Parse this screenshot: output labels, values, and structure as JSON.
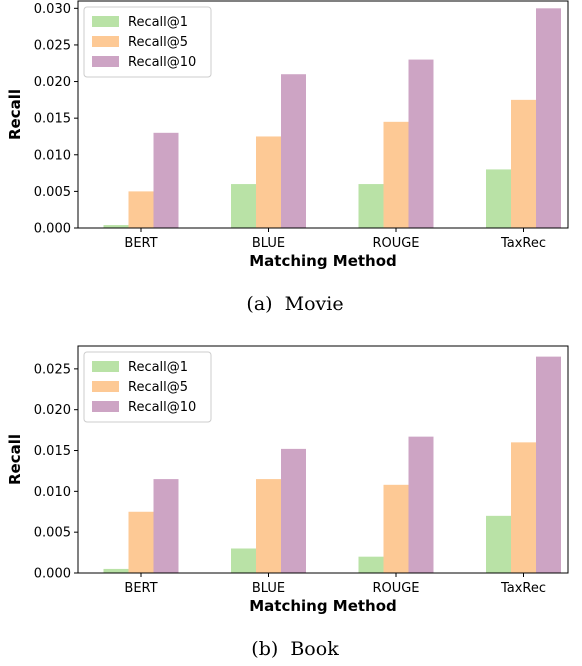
{
  "colors": {
    "Recall@1": "#b9e2a6",
    "Recall@5": "#fdc995",
    "Recall@10": "#cda4c4"
  },
  "chart_data": [
    {
      "type": "bar",
      "caption": "(a)  Movie",
      "xlabel": "Matching Method",
      "ylabel": "Recall",
      "categories": [
        "BERT",
        "BLUE",
        "ROUGE",
        "TaxRec"
      ],
      "ylim": [
        0,
        0.031
      ],
      "yticks": [
        "0.000",
        "0.005",
        "0.010",
        "0.015",
        "0.020",
        "0.025",
        "0.030"
      ],
      "legend_position": "top-left",
      "grid": false,
      "series": [
        {
          "name": "Recall@1",
          "values": [
            0.0004,
            0.006,
            0.006,
            0.008
          ]
        },
        {
          "name": "Recall@5",
          "values": [
            0.005,
            0.0125,
            0.0145,
            0.0175
          ]
        },
        {
          "name": "Recall@10",
          "values": [
            0.013,
            0.021,
            0.023,
            0.03
          ]
        }
      ]
    },
    {
      "type": "bar",
      "caption": "(b)  Book",
      "xlabel": "Matching Method",
      "ylabel": "Recall",
      "categories": [
        "BERT",
        "BLUE",
        "ROUGE",
        "TaxRec"
      ],
      "ylim": [
        0,
        0.0278
      ],
      "yticks": [
        "0.000",
        "0.005",
        "0.010",
        "0.015",
        "0.020",
        "0.025"
      ],
      "legend_position": "top-left",
      "grid": false,
      "series": [
        {
          "name": "Recall@1",
          "values": [
            0.0005,
            0.003,
            0.002,
            0.007
          ]
        },
        {
          "name": "Recall@5",
          "values": [
            0.0075,
            0.0115,
            0.0108,
            0.016
          ]
        },
        {
          "name": "Recall@10",
          "values": [
            0.0115,
            0.0152,
            0.0167,
            0.0265
          ]
        }
      ]
    }
  ]
}
